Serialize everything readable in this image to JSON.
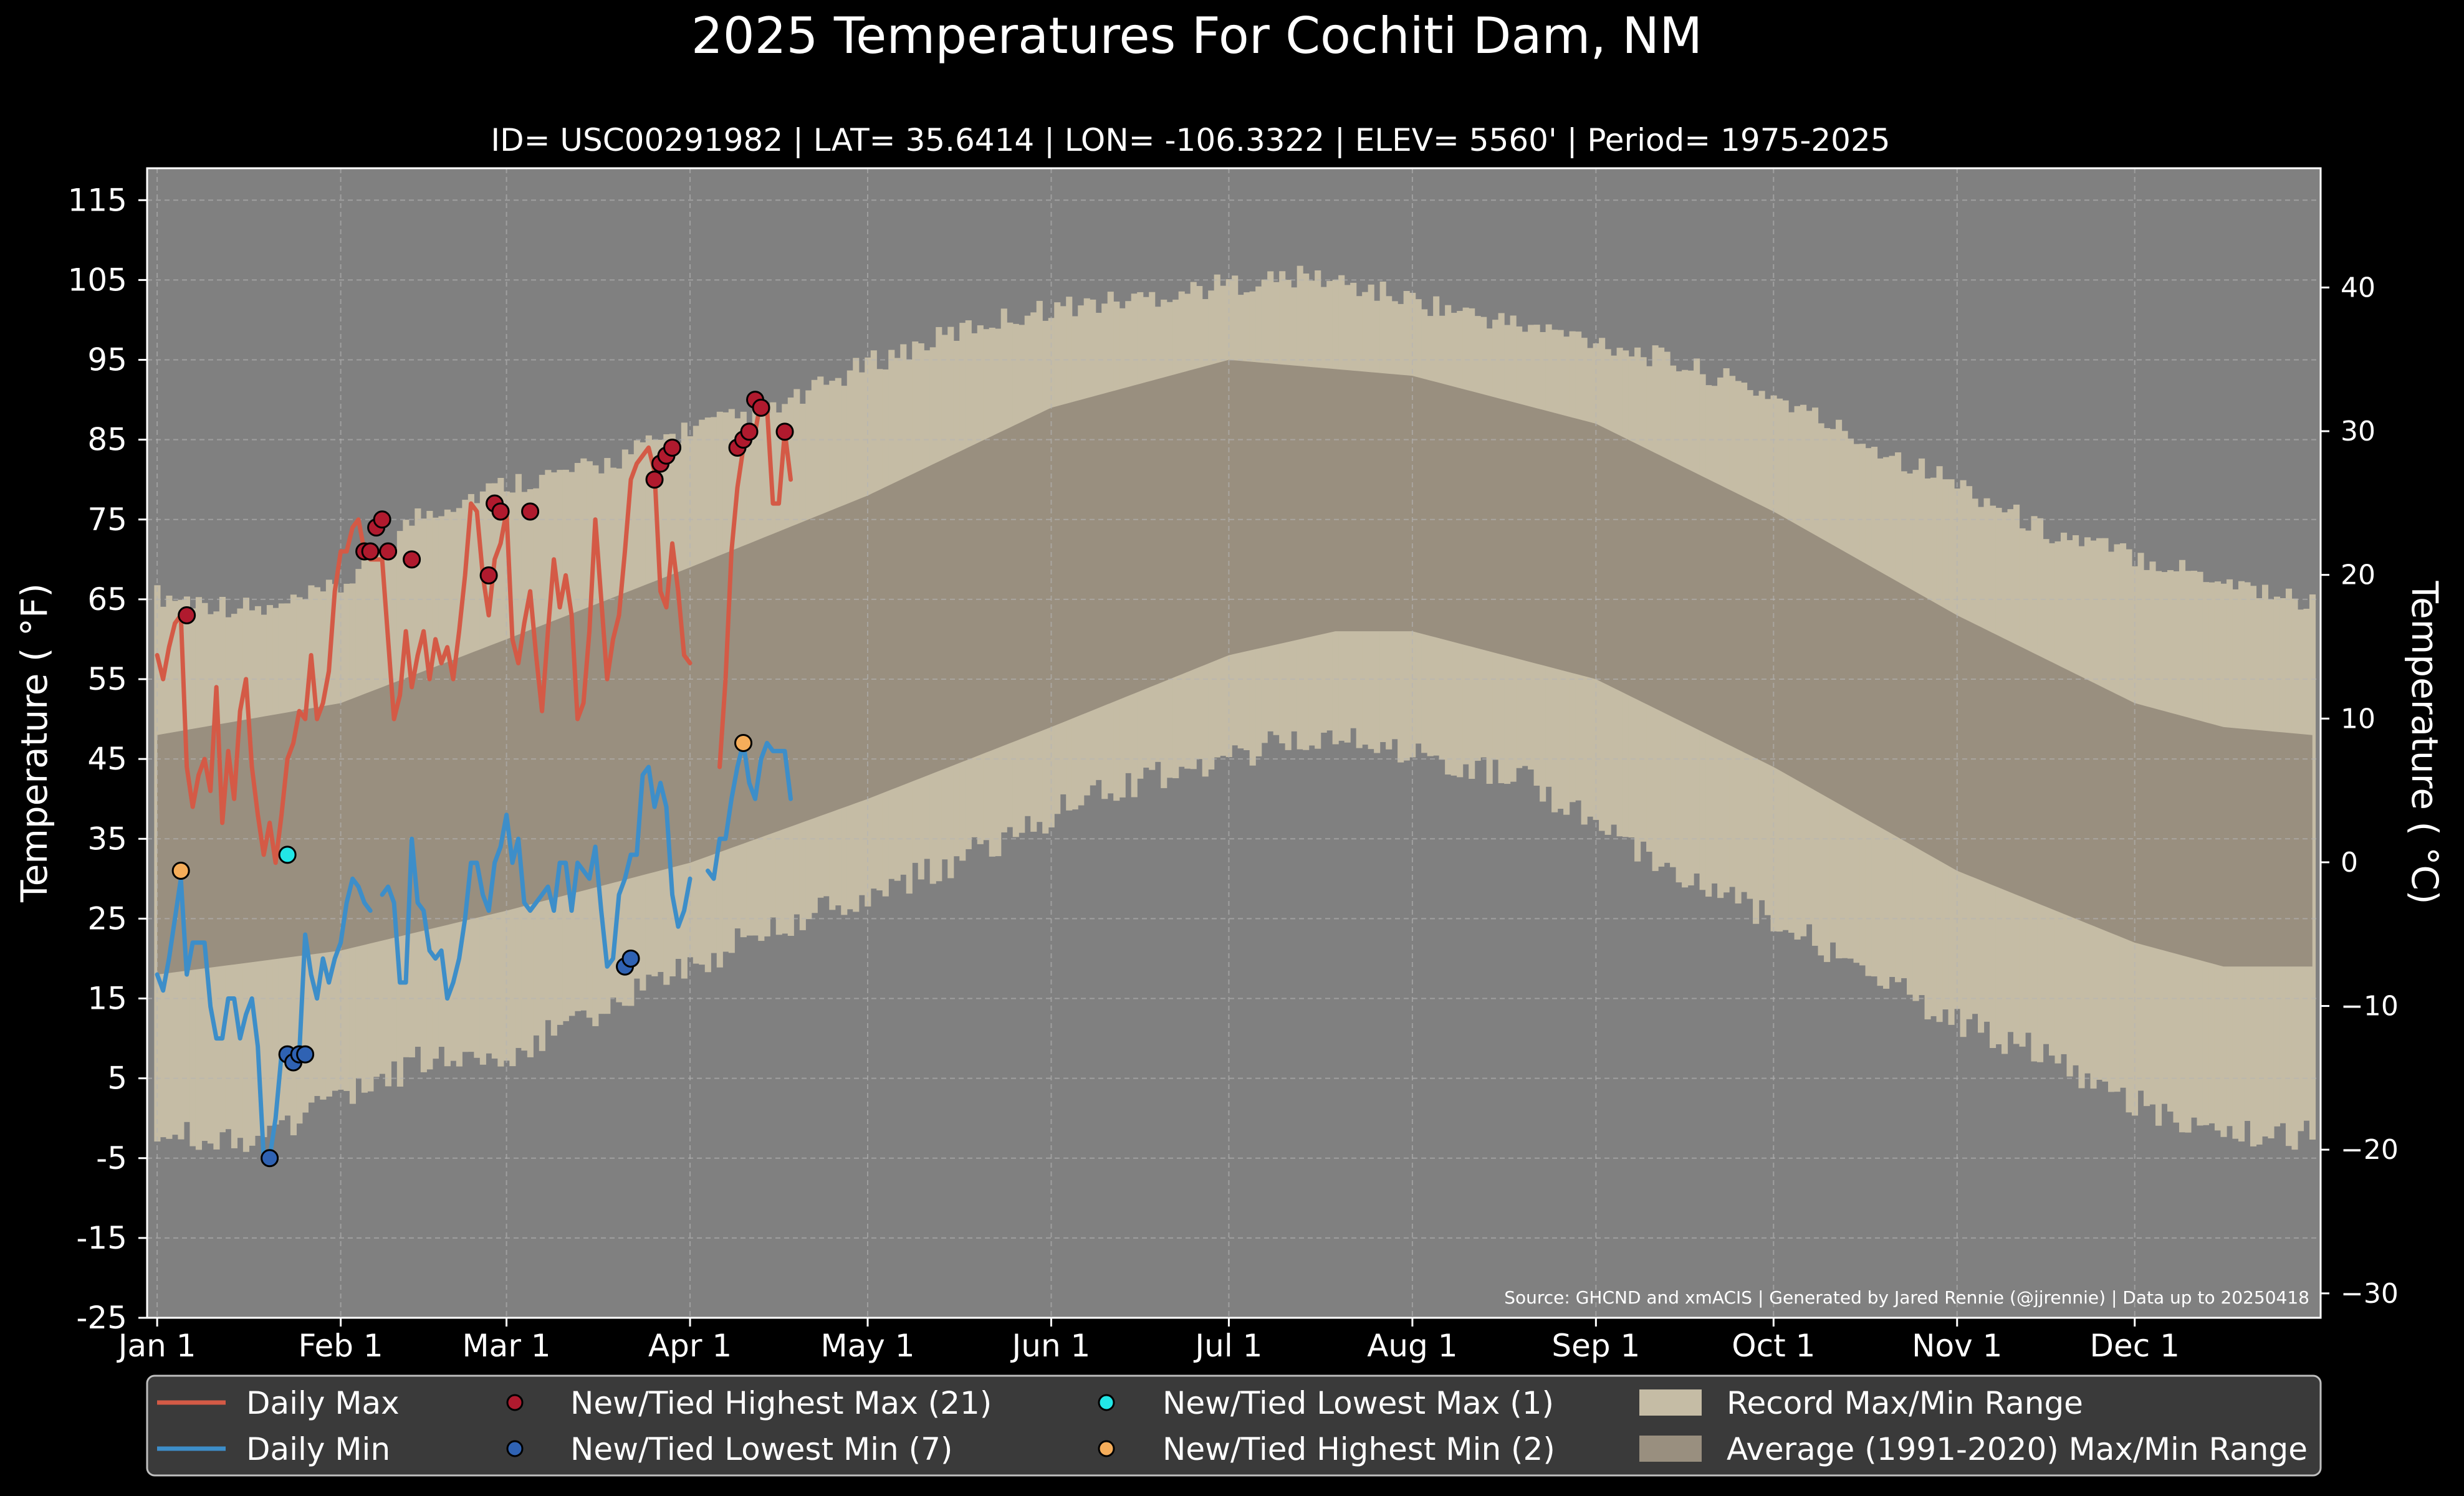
{
  "title": "2025 Temperatures For Cochiti Dam, NM",
  "subtitle": "ID= USC00291982 | LAT= 35.6414 | LON= -106.3322 | ELEV= 5560' | Period= 1975-2025",
  "source": "Source: GHCND and xmACIS | Generated by Jared Rennie (@jjrennie) | Data up to 20250418",
  "colors": {
    "background": "#000000",
    "plot_bg": "#808080",
    "record_range": "#c5bca5",
    "normal_range": "#998f7f",
    "daily_max": "#d45a46",
    "daily_min": "#3d8ec9",
    "record_high_max": "#b01a2e",
    "record_low_min": "#2f62b3",
    "record_low_max": "#22e6e6",
    "record_high_min": "#f5ad5a",
    "legend_bg": "#3a3a3a"
  },
  "chart_data": {
    "type": "line",
    "xlabel": "",
    "ylabel": "Temperature ( °F)",
    "ylabel_right": "Temperature ( °C)",
    "ylim": [
      -25,
      119
    ],
    "ylim_right": [
      -31.7,
      48.3
    ],
    "y_ticks": [
      "-25",
      "-15",
      "-5",
      "5",
      "15",
      "25",
      "35",
      "45",
      "55",
      "65",
      "75",
      "85",
      "95",
      "105",
      "115"
    ],
    "y_ticks_right": [
      "−30",
      "−20",
      "−10",
      "0",
      "10",
      "20",
      "30",
      "40"
    ],
    "x_ticks": [
      {
        "day": 1,
        "label": "Jan 1"
      },
      {
        "day": 32,
        "label": "Feb 1"
      },
      {
        "day": 60,
        "label": "Mar 1"
      },
      {
        "day": 91,
        "label": "Apr 1"
      },
      {
        "day": 121,
        "label": "May 1"
      },
      {
        "day": 152,
        "label": "Jun 1"
      },
      {
        "day": 182,
        "label": "Jul 1"
      },
      {
        "day": 213,
        "label": "Aug 1"
      },
      {
        "day": 244,
        "label": "Sep 1"
      },
      {
        "day": 274,
        "label": "Oct 1"
      },
      {
        "day": 305,
        "label": "Nov 1"
      },
      {
        "day": 335,
        "label": "Dec 1"
      }
    ],
    "grid": true,
    "legend_position": "bottom",
    "record_max_profile": [
      [
        1,
        64
      ],
      [
        20,
        62
      ],
      [
        32,
        65
      ],
      [
        45,
        74
      ],
      [
        60,
        78
      ],
      [
        75,
        80
      ],
      [
        91,
        85
      ],
      [
        105,
        87
      ],
      [
        121,
        93
      ],
      [
        140,
        98
      ],
      [
        152,
        100
      ],
      [
        165,
        101
      ],
      [
        182,
        103
      ],
      [
        196,
        104
      ],
      [
        213,
        101
      ],
      [
        230,
        98
      ],
      [
        244,
        96
      ],
      [
        258,
        93
      ],
      [
        274,
        89
      ],
      [
        290,
        83
      ],
      [
        305,
        78
      ],
      [
        320,
        72
      ],
      [
        335,
        69
      ],
      [
        350,
        66
      ],
      [
        365,
        63
      ]
    ],
    "record_min_profile": [
      [
        1,
        0
      ],
      [
        15,
        -1
      ],
      [
        25,
        2
      ],
      [
        32,
        4
      ],
      [
        45,
        9
      ],
      [
        60,
        10
      ],
      [
        75,
        15
      ],
      [
        91,
        21
      ],
      [
        105,
        26
      ],
      [
        121,
        30
      ],
      [
        135,
        34
      ],
      [
        152,
        40
      ],
      [
        165,
        44
      ],
      [
        182,
        47
      ],
      [
        196,
        50
      ],
      [
        213,
        48
      ],
      [
        230,
        45
      ],
      [
        244,
        39
      ],
      [
        258,
        33
      ],
      [
        274,
        27
      ],
      [
        290,
        20
      ],
      [
        305,
        14
      ],
      [
        320,
        10
      ],
      [
        335,
        4
      ],
      [
        350,
        0
      ],
      [
        365,
        0
      ]
    ],
    "normal_max_profile": [
      [
        1,
        48
      ],
      [
        32,
        52
      ],
      [
        60,
        60
      ],
      [
        91,
        69
      ],
      [
        121,
        78
      ],
      [
        152,
        89
      ],
      [
        182,
        95
      ],
      [
        213,
        93
      ],
      [
        244,
        87
      ],
      [
        274,
        76
      ],
      [
        305,
        63
      ],
      [
        335,
        52
      ],
      [
        350,
        49
      ],
      [
        365,
        48
      ]
    ],
    "normal_min_profile": [
      [
        1,
        18
      ],
      [
        32,
        21
      ],
      [
        60,
        26
      ],
      [
        91,
        32
      ],
      [
        121,
        40
      ],
      [
        152,
        49
      ],
      [
        182,
        58
      ],
      [
        200,
        61
      ],
      [
        213,
        61
      ],
      [
        244,
        55
      ],
      [
        274,
        44
      ],
      [
        305,
        31
      ],
      [
        335,
        22
      ],
      [
        350,
        19
      ],
      [
        365,
        19
      ]
    ],
    "series": [
      {
        "name": "Daily Max",
        "values": [
          [
            1,
            58
          ],
          [
            2,
            55
          ],
          [
            3,
            59
          ],
          [
            4,
            62
          ],
          [
            5,
            63
          ],
          [
            6,
            44
          ],
          [
            7,
            39
          ],
          [
            8,
            43
          ],
          [
            9,
            45
          ],
          [
            10,
            41
          ],
          [
            11,
            54
          ],
          [
            12,
            37
          ],
          [
            13,
            46
          ],
          [
            14,
            40
          ],
          [
            15,
            51
          ],
          [
            16,
            55
          ],
          [
            17,
            44
          ],
          [
            18,
            38
          ],
          [
            19,
            33
          ],
          [
            20,
            37
          ],
          [
            21,
            32
          ],
          [
            22,
            38
          ],
          [
            23,
            45
          ],
          [
            24,
            47
          ],
          [
            25,
            51
          ],
          [
            26,
            50
          ],
          [
            27,
            58
          ],
          [
            28,
            50
          ],
          [
            29,
            52
          ],
          [
            30,
            56
          ],
          [
            31,
            66
          ],
          [
            32,
            71
          ],
          [
            33,
            71
          ],
          [
            34,
            74
          ],
          [
            35,
            75
          ],
          [
            36,
            71
          ],
          [
            37,
            70
          ],
          [
            38,
            70
          ],
          [
            39,
            70
          ],
          [
            40,
            60
          ],
          [
            41,
            50
          ],
          [
            42,
            53
          ],
          [
            43,
            61
          ],
          [
            44,
            54
          ],
          [
            45,
            58
          ],
          [
            46,
            61
          ],
          [
            47,
            55
          ],
          [
            48,
            60
          ],
          [
            49,
            57
          ],
          [
            50,
            59
          ],
          [
            51,
            55
          ],
          [
            52,
            61
          ],
          [
            53,
            68
          ],
          [
            54,
            77
          ],
          [
            55,
            76
          ],
          [
            56,
            68
          ],
          [
            57,
            63
          ],
          [
            58,
            70
          ],
          [
            59,
            72
          ],
          [
            60,
            76
          ],
          [
            61,
            60
          ],
          [
            62,
            57
          ],
          [
            63,
            62
          ],
          [
            64,
            66
          ],
          [
            65,
            58
          ],
          [
            66,
            51
          ],
          [
            67,
            61
          ],
          [
            68,
            70
          ],
          [
            69,
            64
          ],
          [
            70,
            68
          ],
          [
            71,
            63
          ],
          [
            72,
            50
          ],
          [
            73,
            52
          ],
          [
            74,
            61
          ],
          [
            75,
            75
          ],
          [
            76,
            65
          ],
          [
            77,
            55
          ],
          [
            78,
            60
          ],
          [
            79,
            63
          ],
          [
            80,
            71
          ],
          [
            81,
            80
          ],
          [
            82,
            82
          ],
          [
            83,
            83
          ],
          [
            84,
            84
          ],
          [
            85,
            81
          ],
          [
            86,
            66
          ],
          [
            87,
            64
          ],
          [
            88,
            72
          ],
          [
            89,
            66
          ],
          [
            90,
            58
          ],
          [
            91,
            57
          ]
        ],
        "segment2": [
          [
            96,
            44
          ],
          [
            97,
            55
          ],
          [
            98,
            71
          ],
          [
            99,
            79
          ],
          [
            100,
            84
          ],
          [
            101,
            85
          ],
          [
            102,
            86
          ],
          [
            103,
            90
          ],
          [
            104,
            89
          ],
          [
            105,
            77
          ],
          [
            106,
            77
          ],
          [
            107,
            86
          ],
          [
            108,
            80
          ]
        ]
      },
      {
        "name": "Daily Min",
        "values": [
          [
            1,
            18
          ],
          [
            2,
            16
          ],
          [
            3,
            20
          ],
          [
            4,
            25
          ],
          [
            5,
            30
          ],
          [
            6,
            18
          ],
          [
            7,
            22
          ],
          [
            8,
            22
          ],
          [
            9,
            22
          ],
          [
            10,
            14
          ],
          [
            11,
            10
          ],
          [
            12,
            10
          ],
          [
            13,
            15
          ],
          [
            14,
            15
          ],
          [
            15,
            10
          ],
          [
            16,
            13
          ],
          [
            17,
            15
          ],
          [
            18,
            9
          ],
          [
            19,
            -5
          ],
          [
            20,
            -5
          ],
          [
            21,
            0
          ],
          [
            22,
            8
          ],
          [
            23,
            7
          ],
          [
            24,
            8
          ],
          [
            25,
            8
          ],
          [
            26,
            23
          ],
          [
            27,
            18
          ],
          [
            28,
            15
          ],
          [
            29,
            20
          ],
          [
            30,
            17
          ],
          [
            31,
            20
          ],
          [
            32,
            22
          ],
          [
            33,
            27
          ],
          [
            34,
            30
          ],
          [
            35,
            29
          ],
          [
            36,
            27
          ],
          [
            37,
            26
          ]
        ],
        "segment2": [
          [
            39,
            28
          ],
          [
            40,
            29
          ],
          [
            41,
            27
          ],
          [
            42,
            17
          ],
          [
            43,
            17
          ],
          [
            44,
            35
          ],
          [
            45,
            27
          ],
          [
            46,
            26
          ],
          [
            47,
            21
          ],
          [
            48,
            20
          ],
          [
            49,
            21
          ],
          [
            50,
            15
          ],
          [
            51,
            17
          ],
          [
            52,
            20
          ],
          [
            53,
            25
          ],
          [
            54,
            32
          ],
          [
            55,
            32
          ],
          [
            56,
            28
          ],
          [
            57,
            26
          ],
          [
            58,
            32
          ],
          [
            59,
            34
          ],
          [
            60,
            38
          ],
          [
            61,
            32
          ],
          [
            62,
            35
          ],
          [
            63,
            27
          ],
          [
            64,
            26
          ],
          [
            65,
            27
          ],
          [
            66,
            28
          ],
          [
            67,
            29
          ],
          [
            68,
            26
          ],
          [
            69,
            32
          ],
          [
            70,
            32
          ],
          [
            71,
            26
          ],
          [
            72,
            32
          ],
          [
            73,
            31
          ],
          [
            74,
            30
          ],
          [
            75,
            34
          ],
          [
            76,
            26
          ],
          [
            77,
            19
          ],
          [
            78,
            20
          ],
          [
            79,
            28
          ],
          [
            80,
            30
          ],
          [
            81,
            33
          ],
          [
            82,
            33
          ],
          [
            83,
            43
          ],
          [
            84,
            44
          ],
          [
            85,
            39
          ],
          [
            86,
            42
          ],
          [
            87,
            39
          ],
          [
            88,
            28
          ],
          [
            89,
            24
          ],
          [
            90,
            26
          ],
          [
            91,
            30
          ]
        ],
        "segment3": [
          [
            94,
            31
          ],
          [
            95,
            30
          ],
          [
            96,
            35
          ],
          [
            97,
            35
          ],
          [
            98,
            40
          ],
          [
            99,
            44
          ],
          [
            100,
            47
          ],
          [
            101,
            42
          ],
          [
            102,
            40
          ],
          [
            103,
            45
          ],
          [
            104,
            47
          ],
          [
            105,
            46
          ],
          [
            106,
            46
          ],
          [
            107,
            46
          ],
          [
            108,
            40
          ]
        ]
      }
    ],
    "markers": [
      {
        "name": "New/Tied Highest Max (21)",
        "points": [
          [
            6,
            63
          ],
          [
            36,
            71
          ],
          [
            37,
            71
          ],
          [
            38,
            74
          ],
          [
            39,
            75
          ],
          [
            40,
            71
          ],
          [
            44,
            70
          ],
          [
            57,
            68
          ],
          [
            58,
            77
          ],
          [
            59,
            76
          ],
          [
            64,
            76
          ],
          [
            85,
            80
          ],
          [
            86,
            82
          ],
          [
            87,
            83
          ],
          [
            88,
            84
          ],
          [
            99,
            84
          ],
          [
            100,
            85
          ],
          [
            101,
            86
          ],
          [
            102,
            90
          ],
          [
            103,
            89
          ],
          [
            107,
            86
          ]
        ]
      },
      {
        "name": "New/Tied Lowest Min (7)",
        "points": [
          [
            20,
            -5
          ],
          [
            23,
            8
          ],
          [
            24,
            7
          ],
          [
            25,
            8
          ],
          [
            26,
            8
          ],
          [
            80,
            19
          ],
          [
            81,
            20
          ]
        ]
      },
      {
        "name": "New/Tied Lowest Max (1)",
        "points": [
          [
            23,
            33
          ]
        ]
      },
      {
        "name": "New/Tied Highest Min (2)",
        "points": [
          [
            5,
            31
          ],
          [
            100,
            47
          ]
        ]
      }
    ]
  },
  "legend": {
    "daily_max": "Daily Max",
    "daily_min": "Daily Min",
    "highest_max": "New/Tied Highest Max (21)",
    "lowest_min": "New/Tied Lowest Min (7)",
    "lowest_max": "New/Tied Lowest Max (1)",
    "highest_min": "New/Tied Highest Min (2)",
    "record_range": "Record Max/Min Range",
    "average_range": "Average (1991-2020) Max/Min Range"
  }
}
